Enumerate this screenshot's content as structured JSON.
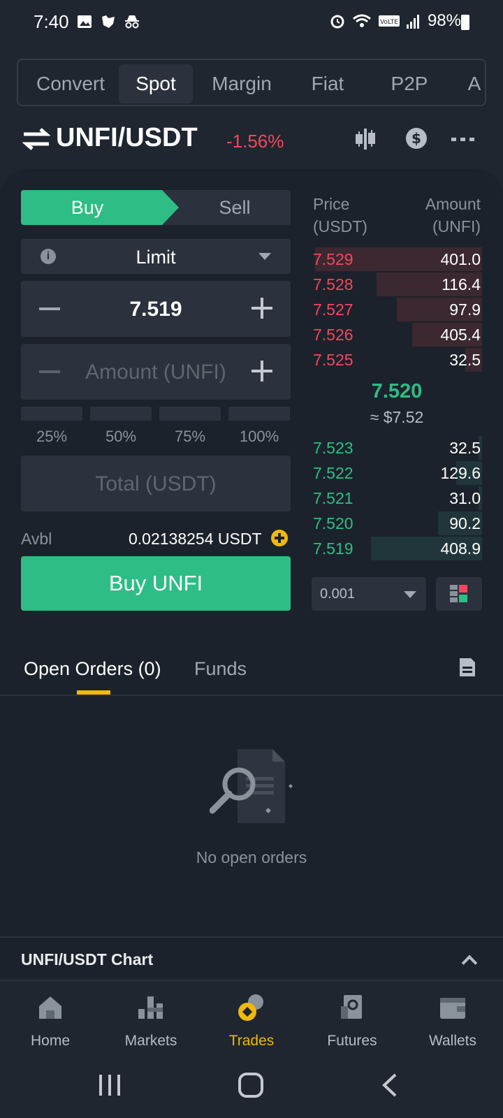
{
  "status_bar": {
    "time": "7:40",
    "battery": "98%"
  },
  "top_tabs": [
    "Convert",
    "Spot",
    "Margin",
    "Fiat",
    "P2P",
    "A"
  ],
  "pair": {
    "name": "UNFI/USDT",
    "change": "-1.56%"
  },
  "order_form": {
    "buy_label": "Buy",
    "sell_label": "Sell",
    "order_type": "Limit",
    "price": "7.519",
    "amount_placeholder": "Amount (UNFI)",
    "percentages": [
      "25%",
      "50%",
      "75%",
      "100%"
    ],
    "total_placeholder": "Total (USDT)",
    "avbl_label": "Avbl",
    "avbl_value": "0.02138254 USDT",
    "submit_label": "Buy UNFI"
  },
  "order_book": {
    "price_header": "Price\n(USDT)",
    "amount_header": "Amount\n(UNFI)",
    "asks": [
      {
        "price": "7.529",
        "amount": "401.0",
        "depth": 0.98
      },
      {
        "price": "7.528",
        "amount": "116.4",
        "depth": 0.62
      },
      {
        "price": "7.527",
        "amount": "97.9",
        "depth": 0.5
      },
      {
        "price": "7.526",
        "amount": "405.4",
        "depth": 0.41
      },
      {
        "price": "7.525",
        "amount": "32.5",
        "depth": 0.1
      }
    ],
    "mid_price": "7.520",
    "mid_usd": "≈ $7.52",
    "bids": [
      {
        "price": "7.523",
        "amount": "32.5",
        "depth": 0.02
      },
      {
        "price": "7.522",
        "amount": "129.6",
        "depth": 0.15
      },
      {
        "price": "7.521",
        "amount": "31.0",
        "depth": 0.02
      },
      {
        "price": "7.520",
        "amount": "90.2",
        "depth": 0.26
      },
      {
        "price": "7.519",
        "amount": "408.9",
        "depth": 0.65
      }
    ],
    "precision": "0.001"
  },
  "orders": {
    "tabs": [
      "Open Orders (0)",
      "Funds"
    ],
    "empty_text": "No open orders"
  },
  "chart_section": {
    "title": "UNFI/USDT Chart"
  },
  "bottom_nav": [
    {
      "label": "Home",
      "icon": "home-icon"
    },
    {
      "label": "Markets",
      "icon": "markets-icon"
    },
    {
      "label": "Trades",
      "icon": "trades-icon"
    },
    {
      "label": "Futures",
      "icon": "futures-icon"
    },
    {
      "label": "Wallets",
      "icon": "wallets-icon"
    }
  ],
  "colors": {
    "buy": "#2ebd85",
    "sell": "#f6465d",
    "accent": "#f0b90b"
  }
}
